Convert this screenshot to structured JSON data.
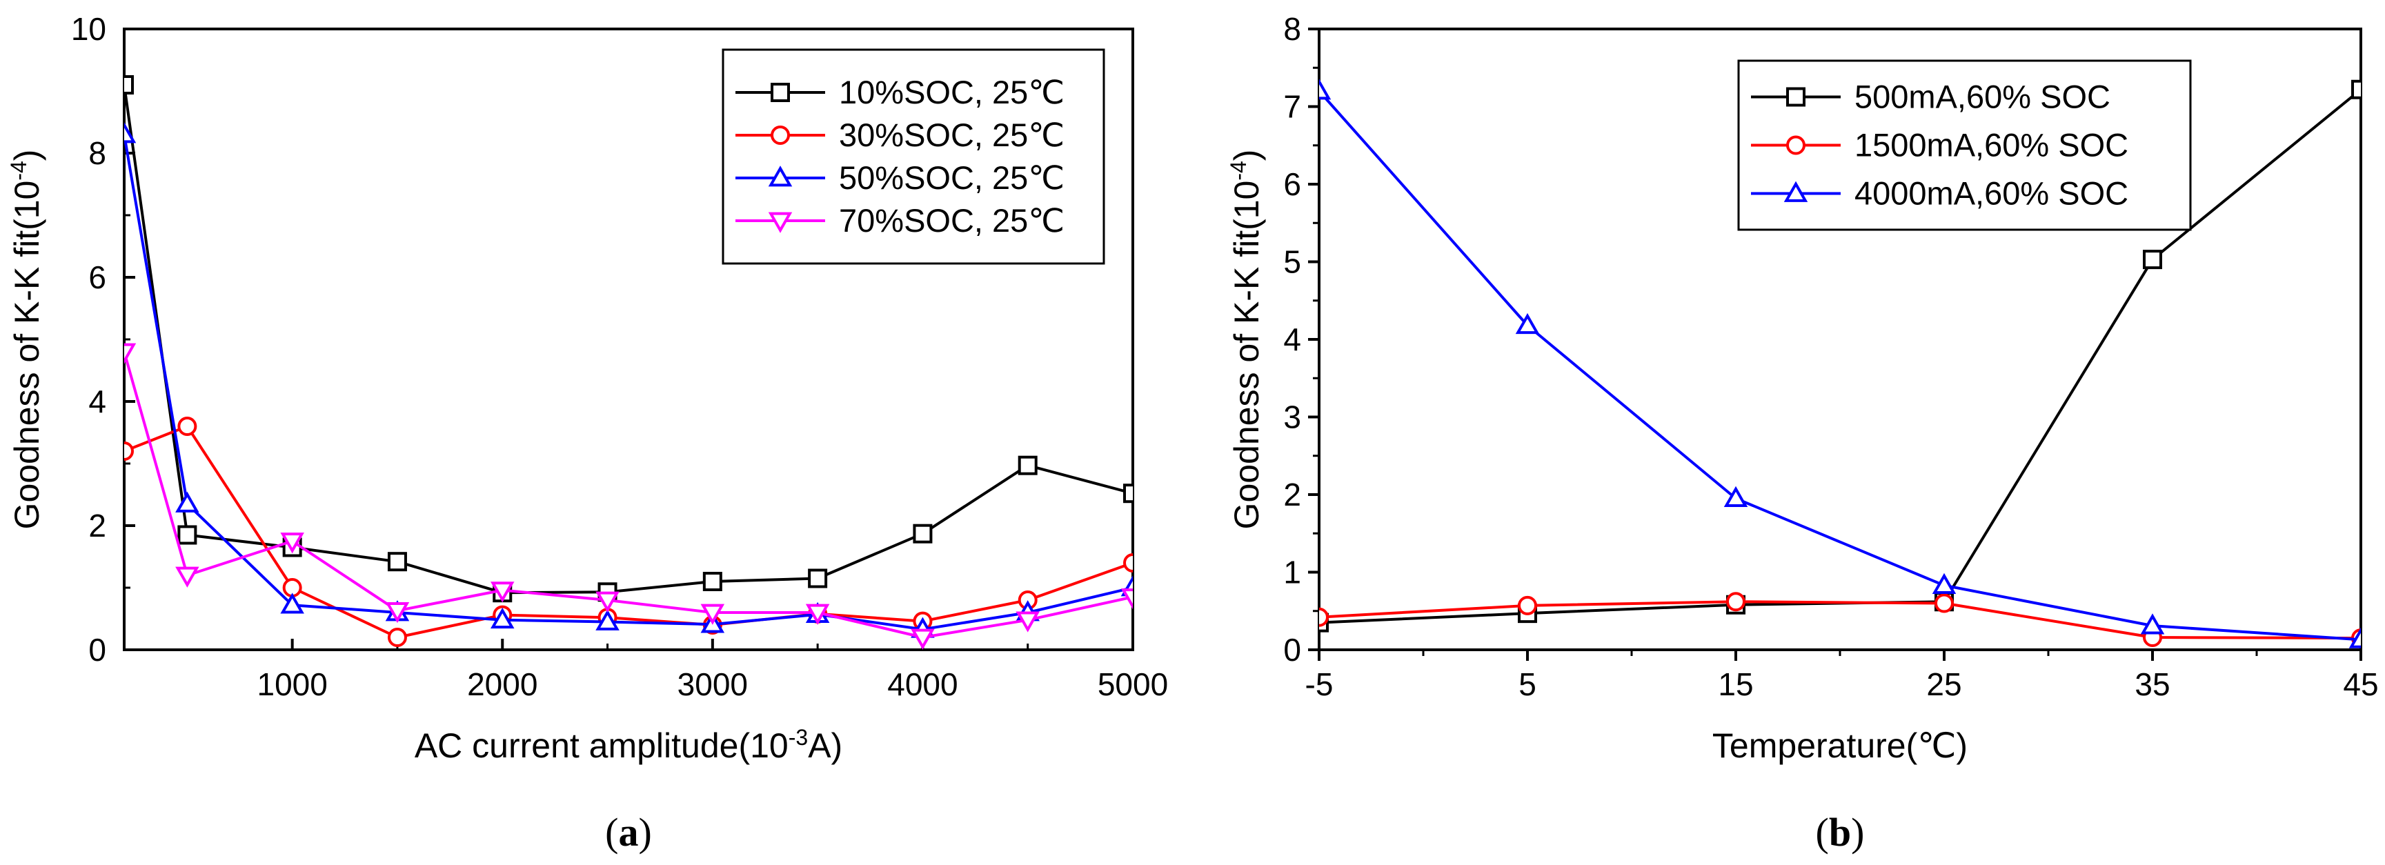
{
  "chart_data": [
    {
      "type": "line",
      "panel": "a",
      "caption_open": "(",
      "caption_letter": "a",
      "caption_close": ")",
      "xlabel": "AC current amplitude(10",
      "xlabel_sup": "-3",
      "xlabel_suffix": "A)",
      "ylabel": "Goodness of K-K fit(10",
      "ylabel_sup": "-4",
      "ylabel_suffix": ")",
      "xlim": [
        200,
        5000
      ],
      "ylim": [
        0,
        10
      ],
      "xticks": [
        1000,
        2000,
        3000,
        4000,
        5000
      ],
      "yticks": [
        0,
        2,
        4,
        6,
        8,
        10
      ],
      "legend_position": "top-right",
      "series": [
        {
          "name": "10%SOC, 25℃",
          "color": "#000000",
          "marker": "square",
          "x": [
            200,
            500,
            1000,
            1500,
            2000,
            2500,
            3000,
            3500,
            4000,
            4500,
            5000
          ],
          "values": [
            9.1,
            1.85,
            1.65,
            1.42,
            0.92,
            0.93,
            1.1,
            1.15,
            1.87,
            2.97,
            2.52
          ]
        },
        {
          "name": "30%SOC, 25℃",
          "color": "#ff0000",
          "marker": "circle",
          "x": [
            200,
            500,
            1000,
            1500,
            2000,
            2500,
            3000,
            3500,
            4000,
            4500,
            5000
          ],
          "values": [
            3.2,
            3.6,
            1.0,
            0.2,
            0.56,
            0.52,
            0.4,
            0.58,
            0.46,
            0.8,
            1.4
          ]
        },
        {
          "name": "50%SOC, 25℃",
          "color": "#0000ff",
          "marker": "triangle-up",
          "x": [
            200,
            500,
            1000,
            1500,
            2000,
            2500,
            3000,
            3500,
            4000,
            4500,
            5000
          ],
          "values": [
            8.3,
            2.35,
            0.72,
            0.6,
            0.48,
            0.45,
            0.41,
            0.57,
            0.33,
            0.6,
            1.0
          ]
        },
        {
          "name": "70%SOC, 25℃",
          "color": "#ff00ff",
          "marker": "triangle-down",
          "x": [
            200,
            500,
            1000,
            1500,
            2000,
            2500,
            3000,
            3500,
            4000,
            4500,
            5000
          ],
          "values": [
            4.8,
            1.2,
            1.75,
            0.63,
            0.96,
            0.8,
            0.6,
            0.6,
            0.2,
            0.48,
            0.85
          ]
        }
      ]
    },
    {
      "type": "line",
      "panel": "b",
      "caption_open": "(",
      "caption_letter": "b",
      "caption_close": ")",
      "xlabel": "Temperature(℃)",
      "ylabel": "Goodness of K-K fit(10",
      "ylabel_sup": "-4",
      "ylabel_suffix": ")",
      "xlim": [
        -5,
        45
      ],
      "ylim": [
        0,
        8
      ],
      "xticks": [
        -5,
        5,
        15,
        25,
        35,
        45
      ],
      "yticks": [
        0,
        1,
        2,
        3,
        4,
        5,
        6,
        7,
        8
      ],
      "legend_position": "top-left",
      "series": [
        {
          "name": "500mA,60% SOC",
          "color": "#000000",
          "marker": "square",
          "x": [
            -5,
            5,
            15,
            25,
            35,
            45
          ],
          "values": [
            0.35,
            0.47,
            0.58,
            0.62,
            5.03,
            7.22
          ]
        },
        {
          "name": "1500mA,60% SOC",
          "color": "#ff0000",
          "marker": "circle",
          "x": [
            -5,
            5,
            15,
            25,
            35,
            45
          ],
          "values": [
            0.42,
            0.57,
            0.62,
            0.6,
            0.16,
            0.15
          ]
        },
        {
          "name": "4000mA,60% SOC",
          "color": "#0000ff",
          "marker": "triangle-up",
          "x": [
            -5,
            5,
            15,
            25,
            35,
            45
          ],
          "values": [
            7.2,
            4.18,
            1.95,
            0.83,
            0.31,
            0.13
          ]
        }
      ]
    }
  ]
}
